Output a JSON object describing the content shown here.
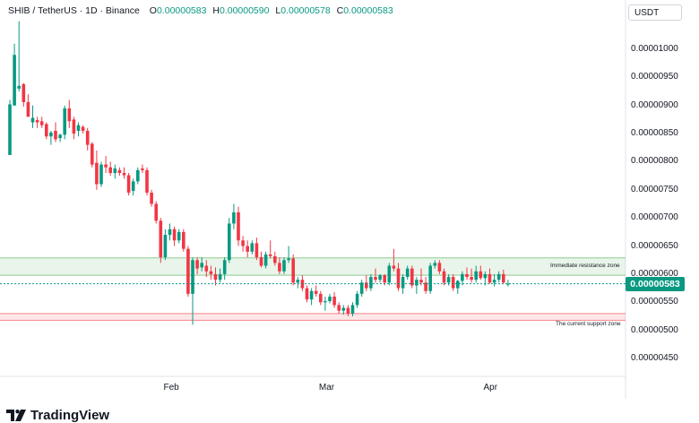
{
  "header": {
    "pair": "SHIB / TetherUS · 1D · Binance",
    "ohlc": [
      {
        "k": "O",
        "v": "0.00000583"
      },
      {
        "k": "H",
        "v": "0.00000590"
      },
      {
        "k": "L",
        "v": "0.00000578"
      },
      {
        "k": "C",
        "v": "0.00000583"
      }
    ]
  },
  "currency_button": "USDT",
  "brand": {
    "name": "TradingView"
  },
  "last_price_label": "0.00000583",
  "zones": [
    {
      "label": "Immediate resistance zone",
      "low": 5.98e-06,
      "high": 6.29e-06,
      "color": "#4caf50"
    },
    {
      "label": "The current support zone",
      "low": 5.18e-06,
      "high": 5.3e-06,
      "color": "#f23645"
    }
  ],
  "colors": {
    "up": "#089981",
    "down": "#f23645",
    "accent": "#089981"
  },
  "chart_data": {
    "type": "candlestick",
    "y_tick_labels": [
      "0.00001000",
      "0.00000950",
      "0.00000900",
      "0.00000850",
      "0.00000800",
      "0.00000750",
      "0.00000700",
      "0.00000650",
      "0.00000600",
      "0.00000550",
      "0.00000500",
      "0.00000450"
    ],
    "y_ticks": [
      1e-05,
      9.5e-06,
      9e-06,
      8.5e-06,
      8e-06,
      7.5e-06,
      7e-06,
      6.5e-06,
      6e-06,
      5.5e-06,
      5e-06,
      4.5e-06
    ],
    "x_tick_labels": [
      {
        "label": "Feb",
        "index": 35
      },
      {
        "label": "Mar",
        "index": 69
      },
      {
        "label": "Apr",
        "index": 105
      }
    ],
    "last_price": 5.83e-06,
    "candles": [
      [
        8.12e-06,
        9.1e-06,
        8.12e-06,
        9.02e-06
      ],
      [
        9e-06,
        1.01e-05,
        9e-06,
        9.9e-06
      ],
      [
        9.3e-06,
        1.05e-05,
        9.25e-06,
        9.35e-06
      ],
      [
        9.38e-06,
        9.4e-06,
        8.98e-06,
        9.06e-06
      ],
      [
        9.06e-06,
        9.2e-06,
        8.8e-06,
        8.8e-06
      ],
      [
        8.7e-06,
        9e-06,
        8.6e-06,
        8.78e-06
      ],
      [
        8.74e-06,
        8.8e-06,
        8.6e-06,
        8.7e-06
      ],
      [
        8.72e-06,
        8.8e-06,
        8.6e-06,
        8.65e-06
      ],
      [
        8.67e-06,
        8.7e-06,
        8.4e-06,
        8.45e-06
      ],
      [
        8.45e-06,
        8.55e-06,
        8.3e-06,
        8.52e-06
      ],
      [
        8.55e-06,
        8.7e-06,
        8.35e-06,
        8.4e-06
      ],
      [
        8.42e-06,
        8.5e-06,
        8.35e-06,
        8.48e-06
      ],
      [
        8.48e-06,
        9e-06,
        8.4e-06,
        8.95e-06
      ],
      [
        8.95e-06,
        9.1e-06,
        8.6e-06,
        8.72e-06
      ],
      [
        8.75e-06,
        8.8e-06,
        8.4e-06,
        8.5e-06
      ],
      [
        8.55e-06,
        8.7e-06,
        8.45e-06,
        8.65e-06
      ],
      [
        8.62e-06,
        8.65e-06,
        8.5e-06,
        8.55e-06
      ],
      [
        8.55e-06,
        8.6e-06,
        8.2e-06,
        8.3e-06
      ],
      [
        8.32e-06,
        8.35e-06,
        7.9e-06,
        7.95e-06
      ],
      [
        7.98e-06,
        8.2e-06,
        7.5e-06,
        7.6e-06
      ],
      [
        7.6e-06,
        8e-06,
        7.55e-06,
        7.95e-06
      ],
      [
        7.95e-06,
        8.1e-06,
        7.8e-06,
        7.9e-06
      ],
      [
        7.9e-06,
        8e-06,
        7.75e-06,
        7.8e-06
      ],
      [
        7.8e-06,
        7.95e-06,
        7.7e-06,
        7.88e-06
      ],
      [
        7.85e-06,
        7.9e-06,
        7.75e-06,
        7.8e-06
      ],
      [
        7.8e-06,
        7.9e-06,
        7.7e-06,
        7.76e-06
      ],
      [
        7.76e-06,
        7.8e-06,
        7.4e-06,
        7.45e-06
      ],
      [
        7.48e-06,
        7.7e-06,
        7.4e-06,
        7.65e-06
      ],
      [
        7.65e-06,
        7.9e-06,
        7.6e-06,
        7.85e-06
      ],
      [
        7.88e-06,
        7.95e-06,
        7.8e-06,
        7.85e-06
      ],
      [
        7.85e-06,
        7.9e-06,
        7.4e-06,
        7.45e-06
      ],
      [
        7.45e-06,
        7.5e-06,
        7.2e-06,
        7.25e-06
      ],
      [
        7.25e-06,
        7.3e-06,
        6.9e-06,
        6.95e-06
      ],
      [
        6.95e-06,
        7e-06,
        6.2e-06,
        6.3e-06
      ],
      [
        6.3e-06,
        6.8e-06,
        6.25e-06,
        6.7e-06
      ],
      [
        6.7e-06,
        6.9e-06,
        6.6e-06,
        6.8e-06
      ],
      [
        6.8e-06,
        6.85e-06,
        6.5e-06,
        6.6e-06
      ],
      [
        6.6e-06,
        6.8e-06,
        6.55e-06,
        6.75e-06
      ],
      [
        6.75e-06,
        6.8e-06,
        6.4e-06,
        6.45e-06
      ],
      [
        6.45e-06,
        6.5e-06,
        5.6e-06,
        5.65e-06
      ],
      [
        5.65e-06,
        6.3e-06,
        5.1e-06,
        6.25e-06
      ],
      [
        6.25e-06,
        6.3e-06,
        6e-06,
        6.1e-06
      ],
      [
        6.12e-06,
        6.3e-06,
        6.05e-06,
        6.2e-06
      ],
      [
        6.15e-06,
        6.25e-06,
        5.95e-06,
        6.05e-06
      ],
      [
        6.05e-06,
        6.15e-06,
        5.9e-06,
        6e-06
      ],
      [
        6e-06,
        6.12e-06,
        5.8e-06,
        5.9e-06
      ],
      [
        5.9e-06,
        6.1e-06,
        5.85e-06,
        6e-06
      ],
      [
        6e-06,
        6.3e-06,
        5.9e-06,
        6.25e-06
      ],
      [
        6.25e-06,
        7e-06,
        6.2e-06,
        6.9e-06
      ],
      [
        6.9e-06,
        7.25e-06,
        6.8e-06,
        7.1e-06
      ],
      [
        7.1e-06,
        7.2e-06,
        6.5e-06,
        6.6e-06
      ],
      [
        6.6e-06,
        6.68e-06,
        6.4e-06,
        6.5e-06
      ],
      [
        6.5e-06,
        6.6e-06,
        6.3e-06,
        6.4e-06
      ],
      [
        6.4e-06,
        6.6e-06,
        6.35e-06,
        6.55e-06
      ],
      [
        6.55e-06,
        6.65e-06,
        6.25e-06,
        6.3e-06
      ],
      [
        6.3e-06,
        6.4e-06,
        6.12e-06,
        6.15e-06
      ],
      [
        6.15e-06,
        6.4e-06,
        6.1e-06,
        6.35e-06
      ],
      [
        6.35e-06,
        6.6e-06,
        6.28e-06,
        6.32e-06
      ],
      [
        6.32e-06,
        6.4e-06,
        6.15e-06,
        6.2e-06
      ],
      [
        6.2e-06,
        6.3e-06,
        6e-06,
        6.05e-06
      ],
      [
        6.05e-06,
        6.3e-06,
        6e-06,
        6.25e-06
      ],
      [
        6.25e-06,
        6.5e-06,
        6.2e-06,
        6.28e-06
      ],
      [
        6.28e-06,
        6.35e-06,
        5.8e-06,
        5.85e-06
      ],
      [
        5.85e-06,
        5.95e-06,
        5.75e-06,
        5.9e-06
      ],
      [
        5.9e-06,
        5.98e-06,
        5.7e-06,
        5.75e-06
      ],
      [
        5.75e-06,
        5.8e-06,
        5.5e-06,
        5.55e-06
      ],
      [
        5.55e-06,
        5.75e-06,
        5.45e-06,
        5.7e-06
      ],
      [
        5.7e-06,
        5.8e-06,
        5.6e-06,
        5.65e-06
      ],
      [
        5.65e-06,
        5.7e-06,
        5.45e-06,
        5.5e-06
      ],
      [
        5.5e-06,
        5.6e-06,
        5.35e-06,
        5.52e-06
      ],
      [
        5.52e-06,
        5.65e-06,
        5.48e-06,
        5.6e-06
      ],
      [
        5.6e-06,
        5.68e-06,
        5.4e-06,
        5.45e-06
      ],
      [
        5.45e-06,
        5.5e-06,
        5.3e-06,
        5.35e-06
      ],
      [
        5.35e-06,
        5.45e-06,
        5.28e-06,
        5.4e-06
      ],
      [
        5.4e-06,
        5.45e-06,
        5.25e-06,
        5.3e-06
      ],
      [
        5.3e-06,
        5.5e-06,
        5.25e-06,
        5.45e-06
      ],
      [
        5.45e-06,
        5.7e-06,
        5.4e-06,
        5.65e-06
      ],
      [
        5.65e-06,
        5.9e-06,
        5.6e-06,
        5.85e-06
      ],
      [
        5.85e-06,
        5.98e-06,
        5.7e-06,
        5.75e-06
      ],
      [
        5.75e-06,
        6e-06,
        5.7e-06,
        5.95e-06
      ],
      [
        5.95e-06,
        6.1e-06,
        5.85e-06,
        5.9e-06
      ],
      [
        5.9e-06,
        6e-06,
        5.85e-06,
        5.98e-06
      ],
      [
        5.98e-06,
        6e-06,
        5.8e-06,
        5.85e-06
      ],
      [
        5.85e-06,
        6.2e-06,
        5.8e-06,
        6.15e-06
      ],
      [
        6.15e-06,
        6.45e-06,
        6.05e-06,
        6.1e-06
      ],
      [
        6.1e-06,
        6.2e-06,
        5.7e-06,
        5.75e-06
      ],
      [
        5.75e-06,
        6e-06,
        5.65e-06,
        5.95e-06
      ],
      [
        5.95e-06,
        6.15e-06,
        5.9e-06,
        6.1e-06
      ],
      [
        6.1e-06,
        6.15e-06,
        5.75e-06,
        5.8e-06
      ],
      [
        5.8e-06,
        5.95e-06,
        5.65e-06,
        5.9e-06
      ],
      [
        5.9e-06,
        6.1e-06,
        5.8e-06,
        5.85e-06
      ],
      [
        5.85e-06,
        5.95e-06,
        5.65e-06,
        5.7e-06
      ],
      [
        5.7e-06,
        6.2e-06,
        5.65e-06,
        6.15e-06
      ],
      [
        6.15e-06,
        6.25e-06,
        6.1e-06,
        6.2e-06
      ],
      [
        6.2e-06,
        6.25e-06,
        6e-06,
        6.05e-06
      ],
      [
        6.05e-06,
        6.1e-06,
        5.8e-06,
        5.85e-06
      ],
      [
        5.85e-06,
        6e-06,
        5.8e-06,
        5.95e-06
      ],
      [
        5.95e-06,
        6e-06,
        5.7e-06,
        5.75e-06
      ],
      [
        5.75e-06,
        5.9e-06,
        5.65e-06,
        5.88e-06
      ],
      [
        5.88e-06,
        6.05e-06,
        5.8e-06,
        6e-06
      ],
      [
        6e-06,
        6.12e-06,
        5.9e-06,
        5.95e-06
      ],
      [
        5.95e-06,
        6.1e-06,
        5.85e-06,
        5.9e-06
      ],
      [
        5.9e-06,
        6.15e-06,
        5.85e-06,
        6.05e-06
      ],
      [
        6.05e-06,
        6.15e-06,
        5.9e-06,
        5.93e-06
      ],
      [
        5.93e-06,
        6.05e-06,
        5.8e-06,
        6e-06
      ],
      [
        6e-06,
        6.1e-06,
        5.83e-06,
        5.85e-06
      ],
      [
        5.85e-06,
        6e-06,
        5.78e-06,
        5.9e-06
      ],
      [
        5.9e-06,
        6.05e-06,
        5.85e-06,
        6e-06
      ],
      [
        6e-06,
        6.08e-06,
        5.83e-06,
        5.85e-06
      ],
      [
        5.83e-06,
        5.9e-06,
        5.78e-06,
        5.83e-06
      ]
    ]
  }
}
